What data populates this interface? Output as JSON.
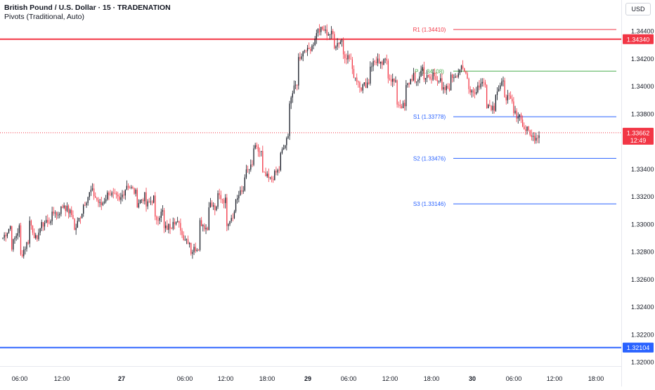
{
  "header": {
    "title": "British Pound / U.S. Dollar · 15 · TRADENATION",
    "indicator": "Pivots (Traditional, Auto)",
    "currency": "USD"
  },
  "colors": {
    "bull_candle": "#131722",
    "bear_candle": "#f23645",
    "red_level": "#f23645",
    "blue_level": "#2962ff",
    "pivot_green": "#4caf50",
    "r1": "#f23645",
    "s_levels": "#2962ff",
    "price_line": "#f23645"
  },
  "chart_data": {
    "type": "candlestick",
    "symbol": "GBPUSD",
    "interval": "15",
    "ylim": [
      1.319,
      1.3455
    ],
    "y_ticks": [
      "1.34400",
      "1.34200",
      "1.34000",
      "1.33800",
      "1.33400",
      "1.33200",
      "1.33000",
      "1.32800",
      "1.32600",
      "1.32400",
      "1.32200",
      "1.32000"
    ],
    "x_ticks": [
      {
        "label": "06:00",
        "bold": false
      },
      {
        "label": "12:00",
        "bold": false
      },
      {
        "label": "27",
        "bold": true
      },
      {
        "label": "06:00",
        "bold": false
      },
      {
        "label": "12:00",
        "bold": false
      },
      {
        "label": "18:00",
        "bold": false
      },
      {
        "label": "29",
        "bold": true
      },
      {
        "label": "06:00",
        "bold": false
      },
      {
        "label": "12:00",
        "bold": false
      },
      {
        "label": "18:00",
        "bold": false
      },
      {
        "label": "30",
        "bold": true
      },
      {
        "label": "06:00",
        "bold": false
      },
      {
        "label": "12:00",
        "bold": false
      },
      {
        "label": "18:00",
        "bold": false
      }
    ],
    "horizontal_lines": [
      {
        "value": 1.3434,
        "label": "1.34340",
        "color": "#f23645"
      },
      {
        "value": 1.32104,
        "label": "1.32104",
        "color": "#2962ff"
      }
    ],
    "pivots": [
      {
        "name": "R1",
        "value": 1.3441,
        "label": "R1 (1.34410)",
        "color": "#f23645"
      },
      {
        "name": "P",
        "value": 1.34108,
        "label": "P (1.34108)",
        "color": "#4caf50"
      },
      {
        "name": "S1",
        "value": 1.33778,
        "label": "S1 (1.33778)",
        "color": "#2962ff"
      },
      {
        "name": "S2",
        "value": 1.33476,
        "label": "S2 (1.33476)",
        "color": "#2962ff"
      },
      {
        "name": "S3",
        "value": 1.33146,
        "label": "S3 (1.33146)",
        "color": "#2962ff"
      }
    ],
    "last_price": {
      "value": 1.33662,
      "label": "1.33662",
      "countdown": "12:49"
    },
    "price_path": [
      [
        1.329,
        1.33
      ],
      [
        1.3284,
        1.33
      ],
      [
        1.3277,
        1.329
      ],
      [
        1.3302,
        1.3283
      ],
      [
        1.3296,
        1.3304
      ],
      [
        1.33,
        1.3312
      ],
      [
        1.3306,
        1.3316
      ],
      [
        1.3312,
        1.3304
      ],
      [
        1.3295,
        1.3312
      ],
      [
        1.3314,
        1.3326
      ],
      [
        1.3323,
        1.3312
      ],
      [
        1.3314,
        1.3325
      ],
      [
        1.3322,
        1.3317
      ],
      [
        1.3316,
        1.3331
      ],
      [
        1.3328,
        1.3321
      ],
      [
        1.3315,
        1.3321
      ],
      [
        1.3313,
        1.332
      ],
      [
        1.3303,
        1.331
      ],
      [
        1.3296,
        1.33
      ],
      [
        1.3304,
        1.3296
      ],
      [
        1.3292,
        1.3286
      ],
      [
        1.328,
        1.3285
      ],
      [
        1.3302,
        1.3295
      ],
      [
        1.3315,
        1.3309
      ],
      [
        1.3321,
        1.3316
      ],
      [
        1.3301,
        1.331
      ],
      [
        1.3318,
        1.3326
      ],
      [
        1.3336,
        1.3343
      ],
      [
        1.3355,
        1.3351
      ],
      [
        1.3336,
        1.3331
      ],
      [
        1.3333,
        1.3341
      ],
      [
        1.335,
        1.3365
      ],
      [
        1.339,
        1.3405
      ],
      [
        1.342,
        1.343
      ],
      [
        1.3425,
        1.3435
      ],
      [
        1.344,
        1.3441
      ],
      [
        1.3439,
        1.3437
      ],
      [
        1.343,
        1.3434
      ],
      [
        1.3424,
        1.3418
      ],
      [
        1.341,
        1.34
      ],
      [
        1.3399,
        1.3404
      ],
      [
        1.3415,
        1.342
      ],
      [
        1.3414,
        1.342
      ],
      [
        1.3408,
        1.34
      ],
      [
        1.3388,
        1.3384
      ],
      [
        1.3399,
        1.341
      ],
      [
        1.34,
        1.3416
      ],
      [
        1.3407,
        1.3404
      ],
      [
        1.3409,
        1.3402
      ],
      [
        1.3396,
        1.34
      ],
      [
        1.3406,
        1.3411
      ],
      [
        1.3413,
        1.3407
      ],
      [
        1.3398,
        1.3395
      ],
      [
        1.34,
        1.3404
      ],
      [
        1.3387,
        1.3384
      ],
      [
        1.3396,
        1.3403
      ],
      [
        1.3394,
        1.3386
      ],
      [
        1.338,
        1.3378
      ],
      [
        1.337,
        1.3366
      ],
      [
        1.3362,
        1.3366
      ]
    ]
  }
}
